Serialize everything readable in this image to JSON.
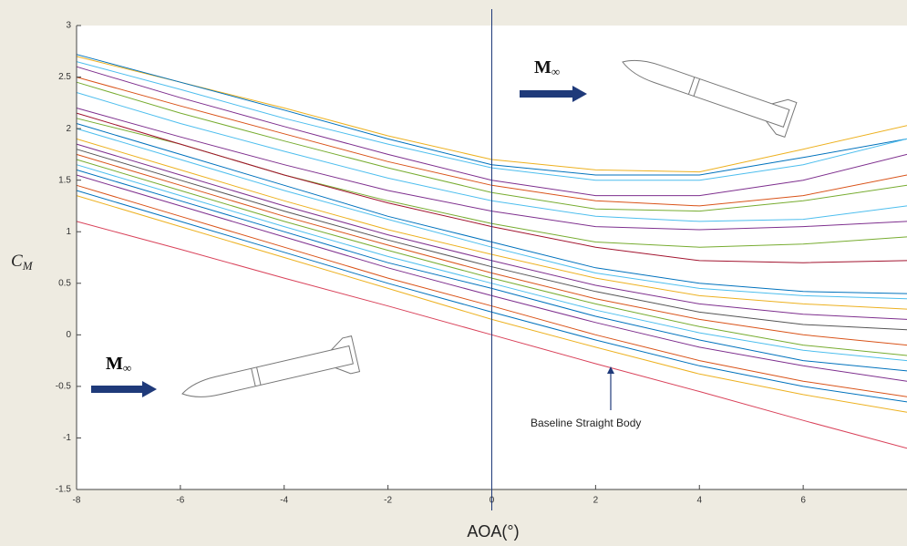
{
  "chart_data": {
    "type": "line",
    "x": [
      -8,
      -6,
      -4,
      -2,
      0,
      2,
      4,
      6,
      8
    ],
    "xlim": [
      -8,
      8
    ],
    "ylim": [
      -1.5,
      3
    ],
    "xticks": [
      -8,
      -6,
      -4,
      -2,
      0,
      2,
      4,
      6
    ],
    "yticks": [
      -1.5,
      -1,
      -0.5,
      0,
      0.5,
      1,
      1.5,
      2,
      2.5,
      3
    ],
    "xlabel": "AOA(°)",
    "ylabel": {
      "base": "C",
      "sub": "M"
    },
    "vline": 0,
    "vline_color": "#1f3a7a",
    "annotations": [
      {
        "base": "M",
        "sub": "∞"
      },
      {
        "base": "M",
        "sub": "∞"
      },
      "Baseline Straight Body"
    ],
    "series": [
      {
        "color": "#EDB120",
        "values": [
          2.7,
          2.45,
          2.2,
          1.93,
          1.7,
          1.6,
          1.58,
          1.8,
          2.03
        ]
      },
      {
        "color": "#0072BD",
        "values": [
          2.72,
          2.45,
          2.18,
          1.9,
          1.65,
          1.55,
          1.55,
          1.72,
          1.9
        ]
      },
      {
        "color": "#4DBEEE",
        "values": [
          2.65,
          2.38,
          2.1,
          1.85,
          1.62,
          1.5,
          1.5,
          1.65,
          1.9
        ]
      },
      {
        "color": "#7E2F8E",
        "values": [
          2.6,
          2.3,
          2.02,
          1.75,
          1.5,
          1.35,
          1.35,
          1.5,
          1.75
        ]
      },
      {
        "color": "#D95319",
        "values": [
          2.5,
          2.22,
          1.95,
          1.68,
          1.45,
          1.3,
          1.25,
          1.35,
          1.55
        ]
      },
      {
        "color": "#77AC30",
        "values": [
          2.45,
          2.15,
          1.88,
          1.62,
          1.38,
          1.22,
          1.2,
          1.3,
          1.45
        ]
      },
      {
        "color": "#4DBEEE",
        "values": [
          2.35,
          2.05,
          1.78,
          1.52,
          1.3,
          1.15,
          1.1,
          1.12,
          1.25
        ]
      },
      {
        "color": "#7E2F8E",
        "values": [
          2.2,
          1.92,
          1.65,
          1.4,
          1.2,
          1.05,
          1.02,
          1.05,
          1.1
        ]
      },
      {
        "color": "#77AC30",
        "values": [
          2.1,
          1.85,
          1.55,
          1.3,
          1.08,
          0.9,
          0.85,
          0.88,
          0.95
        ]
      },
      {
        "color": "#A2142F",
        "values": [
          2.15,
          1.85,
          1.55,
          1.28,
          1.05,
          0.85,
          0.72,
          0.7,
          0.72
        ]
      },
      {
        "color": "#0072BD",
        "values": [
          2.05,
          1.75,
          1.45,
          1.15,
          0.9,
          0.65,
          0.5,
          0.42,
          0.4
        ]
      },
      {
        "color": "#4DBEEE",
        "values": [
          2.0,
          1.7,
          1.4,
          1.12,
          0.85,
          0.6,
          0.45,
          0.38,
          0.35
        ]
      },
      {
        "color": "#EDB120",
        "values": [
          1.9,
          1.6,
          1.3,
          1.02,
          0.78,
          0.55,
          0.38,
          0.3,
          0.25
        ]
      },
      {
        "color": "#7E2F8E",
        "values": [
          1.85,
          1.55,
          1.25,
          0.97,
          0.72,
          0.48,
          0.3,
          0.2,
          0.15
        ]
      },
      {
        "color": "#555555",
        "values": [
          1.8,
          1.5,
          1.2,
          0.92,
          0.66,
          0.42,
          0.22,
          0.1,
          0.05
        ]
      },
      {
        "color": "#D95319",
        "values": [
          1.75,
          1.45,
          1.15,
          0.87,
          0.6,
          0.35,
          0.15,
          0.0,
          -0.1
        ]
      },
      {
        "color": "#77AC30",
        "values": [
          1.7,
          1.4,
          1.1,
          0.82,
          0.55,
          0.3,
          0.08,
          -0.1,
          -0.2
        ]
      },
      {
        "color": "#4DBEEE",
        "values": [
          1.65,
          1.35,
          1.05,
          0.76,
          0.5,
          0.24,
          0.02,
          -0.15,
          -0.25
        ]
      },
      {
        "color": "#0072BD",
        "values": [
          1.6,
          1.3,
          1.0,
          0.7,
          0.45,
          0.18,
          -0.05,
          -0.25,
          -0.35
        ]
      },
      {
        "color": "#7E2F8E",
        "values": [
          1.55,
          1.25,
          0.95,
          0.65,
          0.38,
          0.12,
          -0.12,
          -0.3,
          -0.45
        ]
      },
      {
        "color": "#D95319",
        "values": [
          1.45,
          1.15,
          0.85,
          0.55,
          0.28,
          0.0,
          -0.25,
          -0.45,
          -0.6
        ]
      },
      {
        "color": "#0072BD",
        "values": [
          1.4,
          1.1,
          0.8,
          0.5,
          0.22,
          -0.05,
          -0.3,
          -0.5,
          -0.65
        ]
      },
      {
        "color": "#EDB120",
        "values": [
          1.35,
          1.05,
          0.75,
          0.45,
          0.15,
          -0.12,
          -0.38,
          -0.58,
          -0.75
        ]
      },
      {
        "color": "#D9425A",
        "values": [
          1.1,
          0.83,
          0.55,
          0.28,
          0.0,
          -0.28,
          -0.55,
          -0.83,
          -1.1
        ]
      }
    ]
  }
}
